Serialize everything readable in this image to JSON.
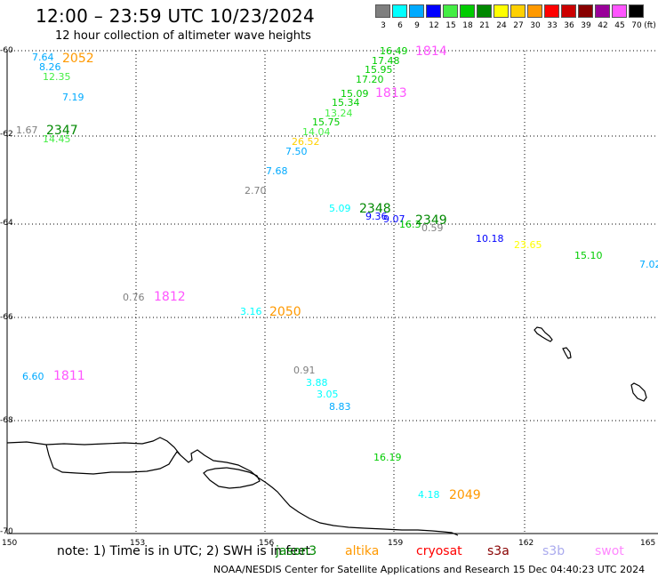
{
  "title": "12:00 – 23:59 UTC 10/23/2024",
  "subtitle": "12 hour collection of altimeter wave heights",
  "color_scale": {
    "unit": "(ft)",
    "stops": [
      {
        "label": "3",
        "color": "#7f7f7f"
      },
      {
        "label": "6",
        "color": "#00ffff"
      },
      {
        "label": "9",
        "color": "#00aaff"
      },
      {
        "label": "12",
        "color": "#0000ff"
      },
      {
        "label": "15",
        "color": "#44ee44"
      },
      {
        "label": "18",
        "color": "#00cc00"
      },
      {
        "label": "21",
        "color": "#008800"
      },
      {
        "label": "24",
        "color": "#ffff00"
      },
      {
        "label": "27",
        "color": "#ffd000"
      },
      {
        "label": "30",
        "color": "#ff9900"
      },
      {
        "label": "33",
        "color": "#ff0000"
      },
      {
        "label": "36",
        "color": "#cc0000"
      },
      {
        "label": "39",
        "color": "#880000"
      },
      {
        "label": "42",
        "color": "#990099"
      },
      {
        "label": "45",
        "color": "#ff55ff"
      },
      {
        "label": "70",
        "color": "#000000"
      }
    ]
  },
  "lat_labels": [
    "-60",
    "-62",
    "-64",
    "-66",
    "-68",
    "-70"
  ],
  "lon_labels": [
    "150",
    "153",
    "156",
    "159",
    "162",
    "165"
  ],
  "observations": [
    {
      "v": "7.64",
      "c": "#00aaff"
    },
    {
      "v": "8.26",
      "c": "#00aaff"
    },
    {
      "v": "12.35",
      "c": "#44ee44"
    },
    {
      "v": "7.19",
      "c": "#00aaff"
    },
    {
      "v": "1.67",
      "c": "#7f7f7f"
    },
    {
      "v": "14.45",
      "c": "#44ee44"
    },
    {
      "v": "16.49",
      "c": "#00cc00"
    },
    {
      "v": "17.48",
      "c": "#00cc00"
    },
    {
      "v": "15.95",
      "c": "#00cc00"
    },
    {
      "v": "17.20",
      "c": "#00cc00"
    },
    {
      "v": "15.09",
      "c": "#00cc00"
    },
    {
      "v": "15.34",
      "c": "#00cc00"
    },
    {
      "v": "13.24",
      "c": "#44ee44"
    },
    {
      "v": "15.75",
      "c": "#00cc00"
    },
    {
      "v": "14.04",
      "c": "#44ee44"
    },
    {
      "v": "26.52",
      "c": "#ffd000"
    },
    {
      "v": "7.50",
      "c": "#00aaff"
    },
    {
      "v": "7.68",
      "c": "#00aaff"
    },
    {
      "v": "2.70",
      "c": "#7f7f7f"
    },
    {
      "v": "5.09",
      "c": "#00ffff"
    },
    {
      "v": "9.36",
      "c": "#0000ff"
    },
    {
      "v": "9.07",
      "c": "#0000ff"
    },
    {
      "v": "16.3",
      "c": "#00cc00"
    },
    {
      "v": "0.59",
      "c": "#7f7f7f"
    },
    {
      "v": "10.18",
      "c": "#0000ff"
    },
    {
      "v": "23.65",
      "c": "#ffff00"
    },
    {
      "v": "15.10",
      "c": "#00cc00"
    },
    {
      "v": "7.02",
      "c": "#00aaff"
    },
    {
      "v": "0.76",
      "c": "#7f7f7f"
    },
    {
      "v": "3.16",
      "c": "#00ffff"
    },
    {
      "v": "6.60",
      "c": "#00aaff"
    },
    {
      "v": "0.91",
      "c": "#7f7f7f"
    },
    {
      "v": "3.88",
      "c": "#00ffff"
    },
    {
      "v": "3.05",
      "c": "#00ffff"
    },
    {
      "v": "8.83",
      "c": "#00aaff"
    },
    {
      "v": "16.19",
      "c": "#00cc00"
    },
    {
      "v": "4.18",
      "c": "#00ffff"
    }
  ],
  "track_times": [
    {
      "t": "2052",
      "c": "#ff9900"
    },
    {
      "t": "2347",
      "c": "#008800"
    },
    {
      "t": "1814",
      "c": "#ff55ff"
    },
    {
      "t": "1813",
      "c": "#ff55ff"
    },
    {
      "t": "2348",
      "c": "#008800"
    },
    {
      "t": "2349",
      "c": "#008800"
    },
    {
      "t": "1812",
      "c": "#ff55ff"
    },
    {
      "t": "2050",
      "c": "#ff9900"
    },
    {
      "t": "1811",
      "c": "#ff55ff"
    },
    {
      "t": "2049",
      "c": "#ff9900"
    }
  ],
  "note": "note:  1) Time is in UTC; 2) SWH is in feet",
  "satellites": [
    {
      "name": "jason3",
      "color": "#008800"
    },
    {
      "name": "altika",
      "color": "#ff9900"
    },
    {
      "name": "cryosat",
      "color": "#ff0000"
    },
    {
      "name": "s3a",
      "color": "#880000"
    },
    {
      "name": "s3b",
      "color": "#aaaaee"
    },
    {
      "name": "swot",
      "color": "#ff88ff"
    }
  ],
  "footer": "NOAA/NESDIS Center for Satellite Applications and Research    15 Dec 04:40:23 UTC 2024"
}
